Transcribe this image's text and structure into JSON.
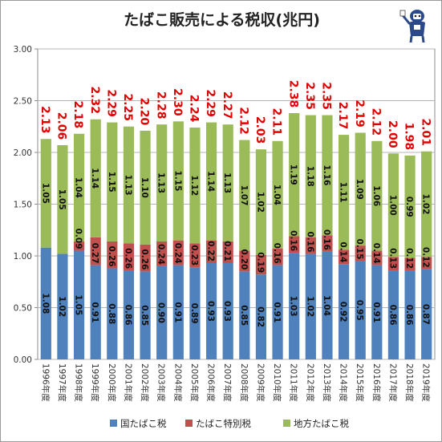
{
  "title": "たばこ販売による税収(兆円)",
  "chart_data": {
    "type": "bar",
    "stacked": true,
    "categories": [
      "1996年度",
      "1997年度",
      "1998年度",
      "1999年度",
      "2000年度",
      "2001年度",
      "2002年度",
      "2003年度",
      "2004年度",
      "2005年度",
      "2006年度",
      "2007年度",
      "2008年度",
      "2009年度",
      "2010年度",
      "2011年度",
      "2012年度",
      "2013年度",
      "2014年度",
      "2015年度",
      "2016年度",
      "2017年度",
      "2018年度",
      "2019年度"
    ],
    "series": [
      {
        "name": "国たばこ税",
        "color": "#4f81bd",
        "values": [
          1.08,
          1.02,
          1.05,
          0.91,
          0.88,
          0.86,
          0.85,
          0.9,
          0.91,
          0.89,
          0.93,
          0.93,
          0.85,
          0.82,
          0.91,
          1.03,
          1.02,
          1.04,
          0.92,
          0.95,
          0.91,
          0.86,
          0.86,
          0.87
        ]
      },
      {
        "name": "たばこ特別税",
        "color": "#c0504d",
        "values": [
          0,
          0,
          0.09,
          0.27,
          0.26,
          0.26,
          0.26,
          0.24,
          0.24,
          0.23,
          0.22,
          0.21,
          0.2,
          0.19,
          0.16,
          0.16,
          0.16,
          0.16,
          0.14,
          0.15,
          0.14,
          0.13,
          0.12,
          0.12
        ]
      },
      {
        "name": "地方たばこ税",
        "color": "#9bbb59",
        "values": [
          1.05,
          1.05,
          1.04,
          1.14,
          1.15,
          1.13,
          1.1,
          1.13,
          1.15,
          1.12,
          1.14,
          1.13,
          1.07,
          1.02,
          1.04,
          1.19,
          1.18,
          1.16,
          1.11,
          1.09,
          1.06,
          1.0,
          0.99,
          1.02
        ]
      }
    ],
    "totals": [
      2.13,
      2.06,
      2.18,
      2.32,
      2.29,
      2.25,
      2.2,
      2.28,
      2.3,
      2.24,
      2.29,
      2.27,
      2.12,
      2.03,
      2.11,
      2.38,
      2.35,
      2.35,
      2.17,
      2.19,
      2.12,
      2.0,
      1.98,
      2.01
    ],
    "value_labels": {
      "bottom": [
        "1.08",
        "1.02",
        "1.05",
        "0.91",
        "0.88",
        "0.86",
        "0.85",
        "0.90",
        "0.91",
        "0.89",
        "0.93",
        "0.93",
        "0.85",
        "0.82",
        "0.91",
        "1.03",
        "1.02",
        "1.04",
        "0.92",
        "0.95",
        "0.91",
        "0.86",
        "0.86",
        "0.87"
      ],
      "middle": [
        "",
        "",
        "0.09",
        "0.27",
        "0.26",
        "0.26",
        "0.26",
        "0.24",
        "0.24",
        "0.23",
        "0.22",
        "0.21",
        "0.20",
        "0.19",
        "0.16",
        "0.16",
        "0.16",
        "0.16",
        "0.14",
        "0.15",
        "0.14",
        "0.13",
        "0.12",
        "0.12"
      ],
      "top": [
        "1.05",
        "1.05",
        "1.04",
        "1.14",
        "1.15",
        "1.13",
        "1.10",
        "1.13",
        "1.15",
        "1.12",
        "1.14",
        "1.13",
        "1.07",
        "1.02",
        "1.04",
        "1.19",
        "1.18",
        "1.16",
        "1.11",
        "1.09",
        "1.06",
        "1.00",
        "0.99",
        "1.02"
      ],
      "total": [
        "2.13",
        "2.06",
        "2.18",
        "2.32",
        "2.29",
        "2.25",
        "2.20",
        "2.28",
        "2.30",
        "2.24",
        "2.29",
        "2.27",
        "2.12",
        "2.03",
        "2.11",
        "2.38",
        "2.35",
        "2.35",
        "2.17",
        "2.19",
        "2.12",
        "2.00",
        "1.98",
        "2.01"
      ]
    },
    "yticks": [
      "0.00",
      "0.50",
      "1.00",
      "1.50",
      "2.00",
      "2.50",
      "3.00"
    ],
    "ylim": [
      0,
      3
    ],
    "grid": true,
    "legend_position": "bottom",
    "total_label_color": "#e00000"
  }
}
